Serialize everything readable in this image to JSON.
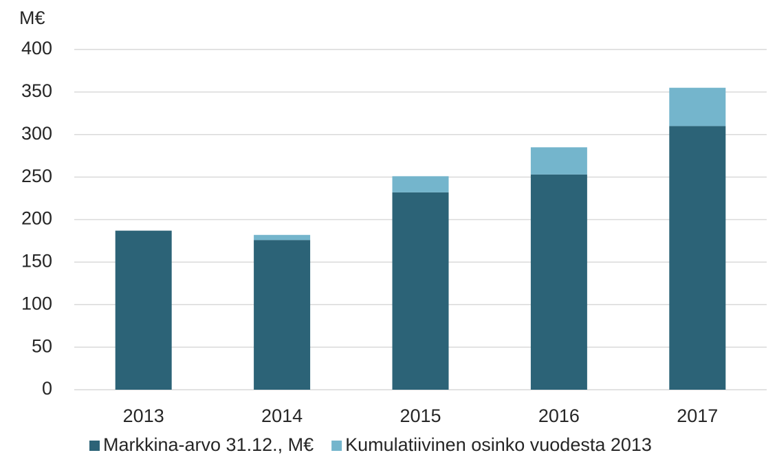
{
  "chart_data": {
    "type": "stacked_bar",
    "y_label": "M€",
    "categories": [
      "2013",
      "2014",
      "2015",
      "2016",
      "2017"
    ],
    "series": [
      {
        "name": "Markkina-arvo 31.12., M€",
        "color": "#2c6377",
        "values": [
          187,
          176,
          232,
          253,
          310
        ]
      },
      {
        "name": "Kumulatiivinen osinko vuodesta 2013",
        "color": "#74b5cc",
        "values": [
          0,
          6,
          19,
          32,
          45
        ]
      }
    ],
    "ylim": [
      0,
      400
    ],
    "yticks": [
      0,
      50,
      100,
      150,
      200,
      250,
      300,
      350,
      400
    ],
    "grid": true
  }
}
